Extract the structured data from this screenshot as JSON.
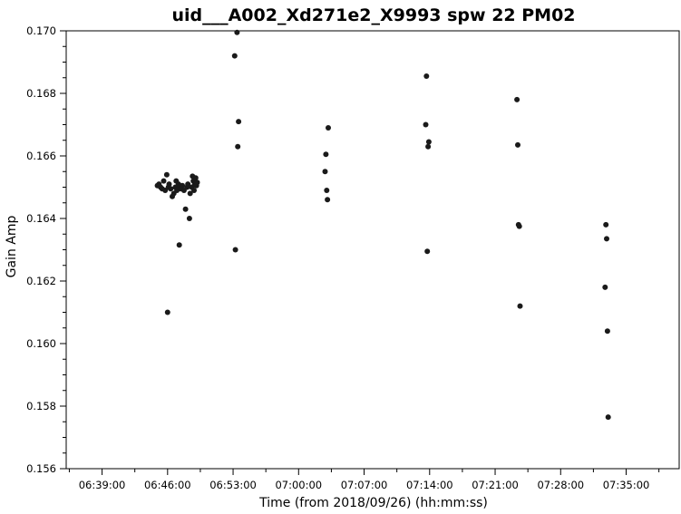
{
  "chart_data": {
    "type": "scatter",
    "title": "uid___A002_Xd271e2_X9993 spw 22 PM02",
    "xlabel": "Time (from 2018/09/26) (hh:mm:ss)",
    "ylabel": "Gain Amp",
    "xlim": [
      "06:35:10",
      "07:40:40"
    ],
    "ylim": [
      0.156,
      0.17
    ],
    "x_ticks": [
      "06:39:00",
      "06:46:00",
      "06:53:00",
      "07:00:00",
      "07:07:00",
      "07:14:00",
      "07:21:00",
      "07:28:00",
      "07:35:00"
    ],
    "y_ticks": [
      "0.156",
      "0.158",
      "0.160",
      "0.162",
      "0.164",
      "0.166",
      "0.168",
      "0.170"
    ],
    "grid": false,
    "series": [
      {
        "color": "#1a1a1a",
        "points": [
          {
            "x": "06:44:55",
            "y": 0.16505
          },
          {
            "x": "06:45:05",
            "y": 0.1651
          },
          {
            "x": "06:45:15",
            "y": 0.165
          },
          {
            "x": "06:45:25",
            "y": 0.16495
          },
          {
            "x": "06:45:35",
            "y": 0.1652
          },
          {
            "x": "06:45:45",
            "y": 0.1649
          },
          {
            "x": "06:45:55",
            "y": 0.1654
          },
          {
            "x": "06:46:00",
            "y": 0.161
          },
          {
            "x": "06:46:05",
            "y": 0.165
          },
          {
            "x": "06:46:10",
            "y": 0.1651
          },
          {
            "x": "06:46:20",
            "y": 0.16495
          },
          {
            "x": "06:46:30",
            "y": 0.1647
          },
          {
            "x": "06:46:40",
            "y": 0.1648
          },
          {
            "x": "06:46:50",
            "y": 0.165
          },
          {
            "x": "06:46:55",
            "y": 0.1652
          },
          {
            "x": "06:47:00",
            "y": 0.1649
          },
          {
            "x": "06:47:05",
            "y": 0.165
          },
          {
            "x": "06:47:10",
            "y": 0.1651
          },
          {
            "x": "06:47:15",
            "y": 0.16315
          },
          {
            "x": "06:47:25",
            "y": 0.16495
          },
          {
            "x": "06:47:35",
            "y": 0.16505
          },
          {
            "x": "06:47:45",
            "y": 0.1649
          },
          {
            "x": "06:47:55",
            "y": 0.1643
          },
          {
            "x": "06:48:05",
            "y": 0.165
          },
          {
            "x": "06:48:10",
            "y": 0.1651
          },
          {
            "x": "06:48:20",
            "y": 0.164
          },
          {
            "x": "06:48:25",
            "y": 0.1648
          },
          {
            "x": "06:48:35",
            "y": 0.165
          },
          {
            "x": "06:48:40",
            "y": 0.16535
          },
          {
            "x": "06:48:45",
            "y": 0.1652
          },
          {
            "x": "06:48:50",
            "y": 0.1649
          },
          {
            "x": "06:48:55",
            "y": 0.1651
          },
          {
            "x": "06:49:00",
            "y": 0.1653
          },
          {
            "x": "06:49:05",
            "y": 0.16505
          },
          {
            "x": "06:49:10",
            "y": 0.16515
          },
          {
            "x": "06:53:10",
            "y": 0.1692
          },
          {
            "x": "06:53:15",
            "y": 0.163
          },
          {
            "x": "06:53:25",
            "y": 0.16995
          },
          {
            "x": "06:53:30",
            "y": 0.1663
          },
          {
            "x": "06:53:35",
            "y": 0.1671
          },
          {
            "x": "07:02:50",
            "y": 0.1655
          },
          {
            "x": "07:02:55",
            "y": 0.16605
          },
          {
            "x": "07:03:00",
            "y": 0.1649
          },
          {
            "x": "07:03:05",
            "y": 0.1646
          },
          {
            "x": "07:03:10",
            "y": 0.1669
          },
          {
            "x": "07:13:35",
            "y": 0.167
          },
          {
            "x": "07:13:40",
            "y": 0.16855
          },
          {
            "x": "07:13:45",
            "y": 0.16295
          },
          {
            "x": "07:13:50",
            "y": 0.1663
          },
          {
            "x": "07:13:55",
            "y": 0.16645
          },
          {
            "x": "07:23:20",
            "y": 0.1678
          },
          {
            "x": "07:23:25",
            "y": 0.16635
          },
          {
            "x": "07:23:30",
            "y": 0.1638
          },
          {
            "x": "07:23:35",
            "y": 0.16375
          },
          {
            "x": "07:23:40",
            "y": 0.1612
          },
          {
            "x": "07:32:45",
            "y": 0.1618
          },
          {
            "x": "07:32:50",
            "y": 0.1638
          },
          {
            "x": "07:32:55",
            "y": 0.16335
          },
          {
            "x": "07:33:00",
            "y": 0.1604
          },
          {
            "x": "07:33:05",
            "y": 0.15765
          }
        ]
      }
    ]
  }
}
